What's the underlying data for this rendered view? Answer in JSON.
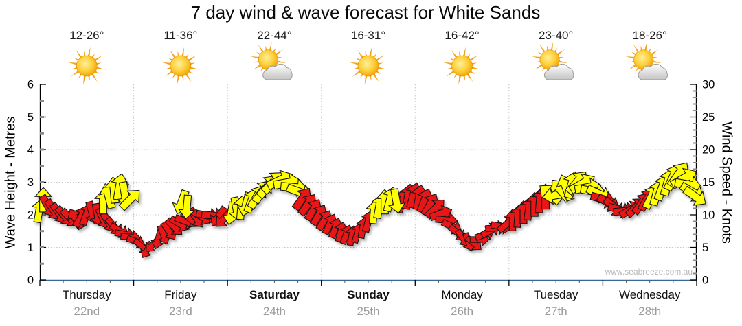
{
  "title": "7 day wind & wave forecast for White Sands",
  "watermark": "www.seabreeze.com.au",
  "days": [
    {
      "name": "Thursday",
      "date": "22nd",
      "temps": "12-26°",
      "icon": "sunny",
      "weekend": false
    },
    {
      "name": "Friday",
      "date": "23rd",
      "temps": "11-36°",
      "icon": "sunny",
      "weekend": false
    },
    {
      "name": "Saturday",
      "date": "24th",
      "temps": "22-44°",
      "icon": "partly-cloudy",
      "weekend": true
    },
    {
      "name": "Sunday",
      "date": "25th",
      "temps": "16-31°",
      "icon": "sunny",
      "weekend": true
    },
    {
      "name": "Monday",
      "date": "26th",
      "temps": "16-42°",
      "icon": "sunny",
      "weekend": false
    },
    {
      "name": "Tuesday",
      "date": "27th",
      "temps": "23-40°",
      "icon": "partly-cloudy",
      "weekend": false
    },
    {
      "name": "Wednesday",
      "date": "28th",
      "temps": "18-26°",
      "icon": "partly-cloudy",
      "weekend": false
    }
  ],
  "left_axis": {
    "title": "Wave Height - Metres",
    "min": 0,
    "max": 6,
    "ticks": [
      0,
      1,
      2,
      3,
      4,
      5,
      6
    ]
  },
  "right_axis": {
    "title": "Wind Speed - Knots",
    "min": 0,
    "max": 30,
    "ticks": [
      0,
      5,
      10,
      15,
      20,
      25,
      30
    ]
  },
  "colors": {
    "red": "#E81212",
    "yellow": "#FFFF00",
    "xaxis": "#36689B",
    "grid": "#C6C6C6",
    "date": "#9b9b9b",
    "watermark": "#b9b9b9",
    "ray": "#F5A11B"
  },
  "chart_data": {
    "type": "wind-arrows",
    "x_axis": "time (7 days, px position across plot)",
    "y_axis_left": "wave height metres 0-6",
    "y_axis_right": "wind speed knots 0-30",
    "arrow_note": "each arrow = [x_px, knots, direction_deg(0=up), color r|y]",
    "arrows": [
      [
        57,
        10.6,
        10,
        "y"
      ],
      [
        63,
        12.3,
        0,
        "y"
      ],
      [
        70,
        11.3,
        150,
        "r"
      ],
      [
        78,
        10.7,
        148,
        "r"
      ],
      [
        86,
        10.2,
        145,
        "r"
      ],
      [
        94,
        9.8,
        140,
        "r"
      ],
      [
        102,
        9.5,
        135,
        "r"
      ],
      [
        110,
        9.4,
        -30,
        "r"
      ],
      [
        118,
        9.7,
        30,
        "r"
      ],
      [
        126,
        10.1,
        20,
        "r"
      ],
      [
        134,
        10.3,
        165,
        "r"
      ],
      [
        142,
        10.0,
        170,
        "r"
      ],
      [
        150,
        9.4,
        155,
        "r"
      ],
      [
        158,
        8.8,
        150,
        "r"
      ],
      [
        166,
        8.2,
        140,
        "r"
      ],
      [
        174,
        7.6,
        120,
        "r"
      ],
      [
        182,
        7.0,
        100,
        "r"
      ],
      [
        190,
        6.6,
        95,
        "r"
      ],
      [
        150,
        12.0,
        0,
        "y"
      ],
      [
        158,
        12.9,
        -15,
        "y"
      ],
      [
        166,
        13.8,
        -5,
        "y"
      ],
      [
        174,
        14.3,
        10,
        "y"
      ],
      [
        182,
        13.1,
        170,
        "y"
      ],
      [
        190,
        12.4,
        45,
        "y"
      ],
      [
        198,
        5.9,
        110,
        "r"
      ],
      [
        206,
        5.2,
        130,
        "r"
      ],
      [
        214,
        4.6,
        210,
        "r"
      ],
      [
        222,
        5.4,
        225,
        "r"
      ],
      [
        230,
        6.2,
        195,
        "r"
      ],
      [
        238,
        6.9,
        160,
        "r"
      ],
      [
        246,
        7.5,
        145,
        "r"
      ],
      [
        254,
        8.1,
        135,
        "r"
      ],
      [
        262,
        8.6,
        120,
        "r"
      ],
      [
        270,
        9.0,
        110,
        "r"
      ],
      [
        278,
        9.3,
        130,
        "r"
      ],
      [
        286,
        9.5,
        145,
        "r"
      ],
      [
        294,
        9.7,
        120,
        "r"
      ],
      [
        302,
        9.9,
        100,
        "r"
      ],
      [
        310,
        9.9,
        95,
        "r"
      ],
      [
        318,
        9.7,
        215,
        "r"
      ],
      [
        326,
        9.4,
        225,
        "r"
      ],
      [
        264,
        11.9,
        200,
        "y"
      ],
      [
        272,
        11.2,
        185,
        "y"
      ],
      [
        336,
        10.2,
        190,
        "y"
      ],
      [
        344,
        10.9,
        170,
        "y"
      ],
      [
        351,
        11.1,
        5,
        "y"
      ],
      [
        358,
        11.6,
        195,
        "y"
      ],
      [
        366,
        12.2,
        20,
        "y"
      ],
      [
        374,
        12.8,
        30,
        "y"
      ],
      [
        382,
        13.6,
        35,
        "y"
      ],
      [
        390,
        14.4,
        40,
        "y"
      ],
      [
        398,
        15.0,
        45,
        "y"
      ],
      [
        408,
        15.3,
        65,
        "y"
      ],
      [
        418,
        14.9,
        80,
        "y"
      ],
      [
        428,
        14.2,
        95,
        "y"
      ],
      [
        436,
        13.5,
        110,
        "y"
      ],
      [
        440,
        12.5,
        35,
        "r"
      ],
      [
        448,
        11.6,
        35,
        "r"
      ],
      [
        456,
        10.8,
        30,
        "r"
      ],
      [
        464,
        10.0,
        30,
        "r"
      ],
      [
        472,
        9.2,
        30,
        "r"
      ],
      [
        480,
        8.6,
        25,
        "r"
      ],
      [
        488,
        8.0,
        20,
        "r"
      ],
      [
        496,
        7.4,
        15,
        "r"
      ],
      [
        504,
        7.0,
        20,
        "r"
      ],
      [
        512,
        6.8,
        10,
        "r"
      ],
      [
        520,
        7.2,
        15,
        "r"
      ],
      [
        528,
        8.0,
        10,
        "r"
      ],
      [
        536,
        9.0,
        15,
        "r"
      ],
      [
        586,
        12.2,
        20,
        "r"
      ],
      [
        594,
        12.8,
        10,
        "r"
      ],
      [
        602,
        13.0,
        15,
        "r"
      ],
      [
        544,
        10.4,
        5,
        "y"
      ],
      [
        552,
        11.3,
        10,
        "y"
      ],
      [
        560,
        12.0,
        0,
        "y"
      ],
      [
        568,
        12.4,
        15,
        "y"
      ],
      [
        577,
        12.1,
        170,
        "y"
      ],
      [
        610,
        12.7,
        10,
        "r"
      ],
      [
        618,
        12.2,
        20,
        "r"
      ],
      [
        626,
        11.6,
        30,
        "r"
      ],
      [
        634,
        11.0,
        45,
        "r"
      ],
      [
        642,
        10.2,
        70,
        "r"
      ],
      [
        650,
        9.2,
        95,
        "r"
      ],
      [
        658,
        8.2,
        115,
        "r"
      ],
      [
        666,
        7.2,
        130,
        "r"
      ],
      [
        674,
        6.4,
        145,
        "r"
      ],
      [
        682,
        5.8,
        160,
        "r"
      ],
      [
        690,
        5.6,
        130,
        "r"
      ],
      [
        698,
        6.2,
        90,
        "r"
      ],
      [
        706,
        7.0,
        70,
        "r"
      ],
      [
        714,
        7.6,
        60,
        "r"
      ],
      [
        722,
        8.0,
        85,
        "r"
      ],
      [
        730,
        8.2,
        100,
        "r"
      ],
      [
        738,
        8.6,
        50,
        "r"
      ],
      [
        746,
        9.2,
        0,
        "r"
      ],
      [
        754,
        9.8,
        5,
        "r"
      ],
      [
        762,
        10.4,
        0,
        "r"
      ],
      [
        770,
        11.0,
        8,
        "r"
      ],
      [
        778,
        11.6,
        0,
        "r"
      ],
      [
        786,
        12.2,
        5,
        "r"
      ],
      [
        794,
        12.8,
        0,
        "r"
      ],
      [
        800,
        13.2,
        -50,
        "y"
      ],
      [
        808,
        13.0,
        -100,
        "y"
      ],
      [
        816,
        13.8,
        -40,
        "y"
      ],
      [
        824,
        14.2,
        -20,
        "y"
      ],
      [
        832,
        14.6,
        15,
        "y"
      ],
      [
        840,
        15.0,
        40,
        "y"
      ],
      [
        848,
        14.8,
        60,
        "y"
      ],
      [
        856,
        14.2,
        80,
        "y"
      ],
      [
        864,
        13.6,
        100,
        "y"
      ],
      [
        872,
        13.2,
        115,
        "y"
      ],
      [
        878,
        12.4,
        105,
        "r"
      ],
      [
        886,
        11.8,
        120,
        "r"
      ],
      [
        894,
        11.2,
        130,
        "r"
      ],
      [
        902,
        10.8,
        105,
        "r"
      ],
      [
        910,
        10.6,
        85,
        "r"
      ],
      [
        918,
        10.8,
        60,
        "r"
      ],
      [
        926,
        11.2,
        45,
        "r"
      ],
      [
        934,
        11.8,
        35,
        "r"
      ],
      [
        942,
        12.4,
        30,
        "r"
      ],
      [
        948,
        12.8,
        25,
        "y"
      ],
      [
        956,
        13.4,
        15,
        "y"
      ],
      [
        964,
        14.2,
        20,
        "y"
      ],
      [
        972,
        15.0,
        15,
        "y"
      ],
      [
        980,
        15.8,
        25,
        "y"
      ],
      [
        988,
        16.2,
        35,
        "y"
      ],
      [
        996,
        15.6,
        60,
        "y"
      ],
      [
        1002,
        14.6,
        100,
        "y"
      ],
      [
        1008,
        13.5,
        120,
        "y"
      ],
      [
        1012,
        12.8,
        125,
        "y"
      ]
    ]
  }
}
